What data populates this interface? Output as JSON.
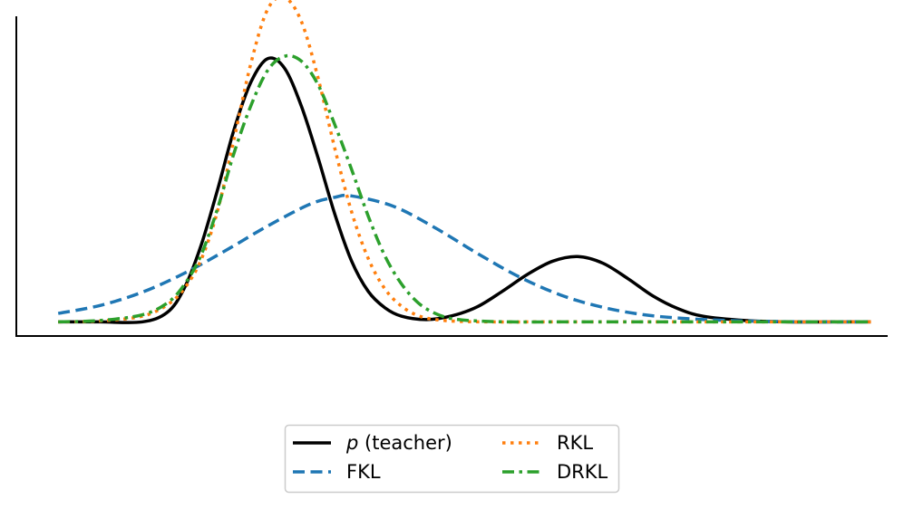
{
  "chart_data": {
    "type": "line",
    "title": "",
    "xlabel": "",
    "ylabel": "",
    "xlim": [
      -3.2,
      7.2
    ],
    "ylim": [
      -0.03,
      0.65
    ],
    "x_ticks": [],
    "y_ticks": [],
    "grid": false,
    "legend": {
      "position": "bottom-center, below axes",
      "columns": 2
    },
    "series": [
      {
        "name": "p (teacher)",
        "label_main": "p",
        "label_rest": " (teacher)",
        "color": "#000000",
        "linestyle": "solid",
        "x": [
          -2.7,
          -2.2,
          -1.7,
          -1.4,
          -1.2,
          -1.0,
          -0.8,
          -0.6,
          -0.4,
          -0.2,
          0.0,
          0.2,
          0.4,
          0.6,
          0.8,
          1.0,
          1.2,
          1.4,
          1.7,
          2.0,
          2.3,
          2.6,
          2.9,
          3.2,
          3.5,
          3.8,
          4.1,
          4.4,
          4.7,
          5.0,
          5.5,
          6.0,
          6.5,
          7.0
        ],
        "y": [
          0.0,
          0.0,
          0.0,
          0.02,
          0.07,
          0.16,
          0.28,
          0.41,
          0.51,
          0.56,
          0.54,
          0.46,
          0.35,
          0.23,
          0.13,
          0.065,
          0.03,
          0.012,
          0.005,
          0.013,
          0.032,
          0.065,
          0.101,
          0.129,
          0.139,
          0.125,
          0.092,
          0.055,
          0.028,
          0.012,
          0.003,
          0.0,
          0.0,
          0.0
        ]
      },
      {
        "name": "FKL",
        "label_main": "FKL",
        "label_rest": "",
        "color": "#1f77b4",
        "linestyle": "dashed",
        "x": [
          -2.7,
          -2.2,
          -1.7,
          -1.2,
          -0.7,
          -0.2,
          0.3,
          0.6,
          0.8,
          1.3,
          1.8,
          2.3,
          2.8,
          3.3,
          3.8,
          4.3,
          4.8,
          5.3,
          5.8,
          6.3,
          6.8,
          7.0
        ],
        "y": [
          0.018,
          0.035,
          0.063,
          0.103,
          0.152,
          0.204,
          0.25,
          0.265,
          0.268,
          0.246,
          0.2,
          0.146,
          0.096,
          0.057,
          0.031,
          0.015,
          0.007,
          0.003,
          0.001,
          0.0,
          0.0,
          0.0
        ]
      },
      {
        "name": "RKL",
        "label_main": "RKL",
        "label_rest": "",
        "color": "#ff7f0e",
        "linestyle": "dotted",
        "x": [
          -2.7,
          -2.2,
          -1.7,
          -1.4,
          -1.2,
          -1.0,
          -0.8,
          -0.6,
          -0.4,
          -0.2,
          0.0,
          0.2,
          0.4,
          0.6,
          0.8,
          1.0,
          1.2,
          1.4,
          1.6,
          1.8,
          2.1,
          2.5,
          3.0,
          4.0,
          5.0,
          6.0,
          7.0
        ],
        "y": [
          0.0,
          0.002,
          0.012,
          0.036,
          0.07,
          0.13,
          0.235,
          0.39,
          0.55,
          0.665,
          0.69,
          0.64,
          0.52,
          0.37,
          0.235,
          0.135,
          0.07,
          0.033,
          0.013,
          0.005,
          0.001,
          0.0,
          0.0,
          0.0,
          0.0,
          0.0,
          0.0
        ]
      },
      {
        "name": "DRKL",
        "label_main": "DRKL",
        "label_rest": "",
        "color": "#2ca02c",
        "linestyle": "dashdot",
        "x": [
          -2.7,
          -2.2,
          -1.7,
          -1.4,
          -1.2,
          -1.0,
          -0.8,
          -0.6,
          -0.4,
          -0.2,
          0.0,
          0.2,
          0.4,
          0.6,
          0.8,
          1.0,
          1.2,
          1.4,
          1.6,
          1.8,
          2.0,
          2.3,
          2.7,
          3.2,
          4.0,
          5.0,
          6.0,
          7.0
        ],
        "y": [
          0.0,
          0.003,
          0.015,
          0.04,
          0.078,
          0.14,
          0.24,
          0.36,
          0.46,
          0.535,
          0.565,
          0.555,
          0.505,
          0.42,
          0.325,
          0.225,
          0.14,
          0.08,
          0.04,
          0.018,
          0.007,
          0.002,
          0.0,
          0.0,
          0.0,
          0.0,
          0.0,
          0.0
        ]
      }
    ]
  }
}
